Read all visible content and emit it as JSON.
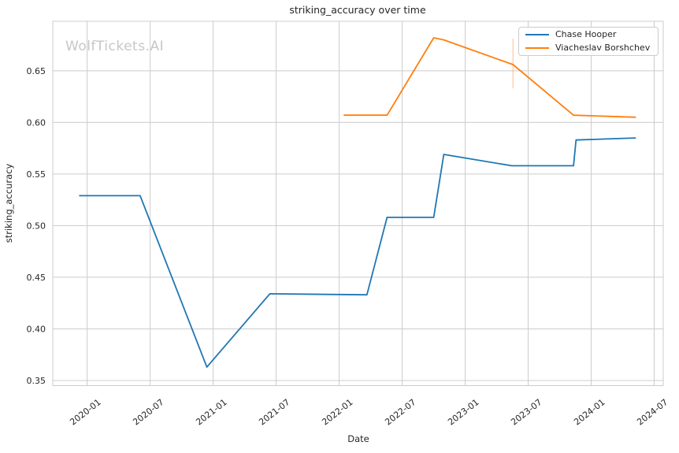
{
  "watermark": {
    "text": "WolfTickets.AI"
  },
  "chart_data": {
    "type": "line",
    "title": "striking_accuracy over time",
    "xlabel": "Date",
    "ylabel": "striking_accuracy",
    "grid": true,
    "legend_position": "upper right",
    "xlim_decimal_years": [
      2019.727,
      2024.572
    ],
    "ylim": [
      0.345,
      0.698
    ],
    "x_ticks": [
      {
        "label": "2020-01",
        "t": 2020.0
      },
      {
        "label": "2020-07",
        "t": 2020.5
      },
      {
        "label": "2021-01",
        "t": 2021.0
      },
      {
        "label": "2021-07",
        "t": 2021.5
      },
      {
        "label": "2022-01",
        "t": 2022.0
      },
      {
        "label": "2022-07",
        "t": 2022.5
      },
      {
        "label": "2023-01",
        "t": 2023.0
      },
      {
        "label": "2023-07",
        "t": 2023.5
      },
      {
        "label": "2024-01",
        "t": 2024.0
      },
      {
        "label": "2024-07",
        "t": 2024.5
      }
    ],
    "y_ticks": [
      0.35,
      0.4,
      0.45,
      0.5,
      0.55,
      0.6,
      0.65
    ],
    "series": [
      {
        "name": "Chase Hooper",
        "color": "#1f77b4",
        "points": [
          {
            "date": "2019-12",
            "t": 2019.94,
            "value": 0.529
          },
          {
            "date": "2020-06",
            "t": 2020.42,
            "value": 0.529
          },
          {
            "date": "2020-12",
            "t": 2020.95,
            "value": 0.363
          },
          {
            "date": "2021-06",
            "t": 2021.45,
            "value": 0.434
          },
          {
            "date": "2022-03",
            "t": 2022.22,
            "value": 0.433
          },
          {
            "date": "2022-05",
            "t": 2022.38,
            "value": 0.508
          },
          {
            "date": "2022-09",
            "t": 2022.75,
            "value": 0.508
          },
          {
            "date": "2022-10",
            "t": 2022.83,
            "value": 0.569
          },
          {
            "date": "2023-05",
            "t": 2023.37,
            "value": 0.558
          },
          {
            "date": "2023-11",
            "t": 2023.86,
            "value": 0.558
          },
          {
            "date": "2023-11",
            "t": 2023.88,
            "value": 0.583
          },
          {
            "date": "2024-05",
            "t": 2024.35,
            "value": 0.585
          }
        ]
      },
      {
        "name": "Viacheslav Borshchev",
        "color": "#ff7f0e",
        "points": [
          {
            "date": "2022-01",
            "t": 2022.04,
            "value": 0.607
          },
          {
            "date": "2022-05",
            "t": 2022.38,
            "value": 0.607
          },
          {
            "date": "2022-09",
            "t": 2022.75,
            "value": 0.682
          },
          {
            "date": "2022-10",
            "t": 2022.83,
            "value": 0.68
          },
          {
            "date": "2023-05",
            "t": 2023.38,
            "value": 0.656
          },
          {
            "date": "2023-11",
            "t": 2023.86,
            "value": 0.607
          },
          {
            "date": "2024-05",
            "t": 2024.35,
            "value": 0.605
          }
        ],
        "error_bar": {
          "date": "2023-05",
          "t": 2023.38,
          "low": 0.633,
          "high": 0.681
        }
      }
    ]
  }
}
